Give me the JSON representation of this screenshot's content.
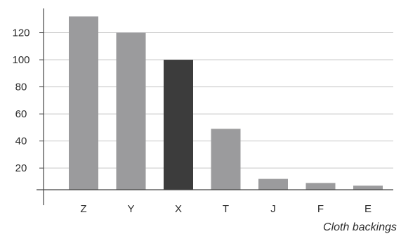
{
  "chart_data": {
    "type": "bar",
    "title": "",
    "xlabel": "Cloth backings",
    "ylabel": "",
    "categories": [
      "Z",
      "Y",
      "X",
      "T",
      "J",
      "F",
      "E"
    ],
    "values": [
      132,
      120,
      100,
      49,
      12,
      9,
      7
    ],
    "highlighted_category": "X",
    "ylim": [
      4,
      140
    ],
    "yticks": [
      20,
      40,
      60,
      80,
      100,
      120
    ],
    "grid": "horizontal",
    "legend": "none",
    "colors": {
      "bar": "#9b9b9d",
      "highlight": "#3c3c3c",
      "grid": "#c8c8c8",
      "axis": "#444444"
    }
  }
}
